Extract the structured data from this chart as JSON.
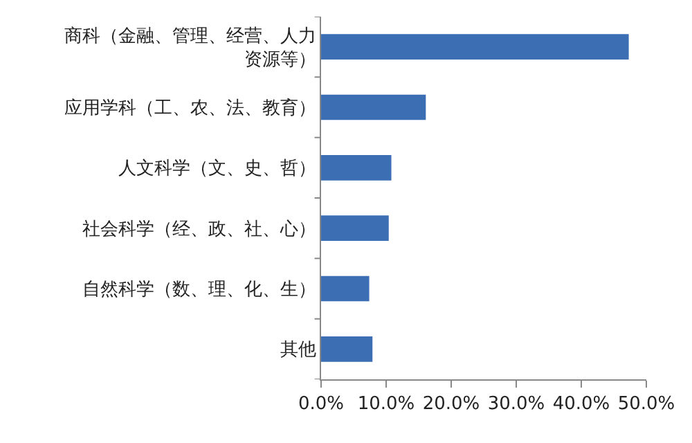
{
  "chart_data": {
    "type": "bar",
    "orientation": "horizontal",
    "categories": [
      "商科（金融、管理、经营、人力资源等）",
      "应用学科（工、农、法、教育）",
      "人文科学（文、史、哲）",
      "社会科学（经、政、社、心）",
      "自然科学（数、理、化、生）",
      "其他"
    ],
    "values": [
      47.3,
      16.1,
      10.8,
      10.4,
      7.4,
      7.9
    ],
    "color": "#3c6eb4",
    "xlim": [
      0,
      50
    ],
    "xticks": [
      {
        "value": 0,
        "label": "0.0%"
      },
      {
        "value": 10,
        "label": "10.0%"
      },
      {
        "value": 20,
        "label": "20.0%"
      },
      {
        "value": 30,
        "label": "30.0%"
      },
      {
        "value": 40,
        "label": "40.0%"
      },
      {
        "value": 50,
        "label": "50.0%"
      }
    ],
    "grid": false
  }
}
